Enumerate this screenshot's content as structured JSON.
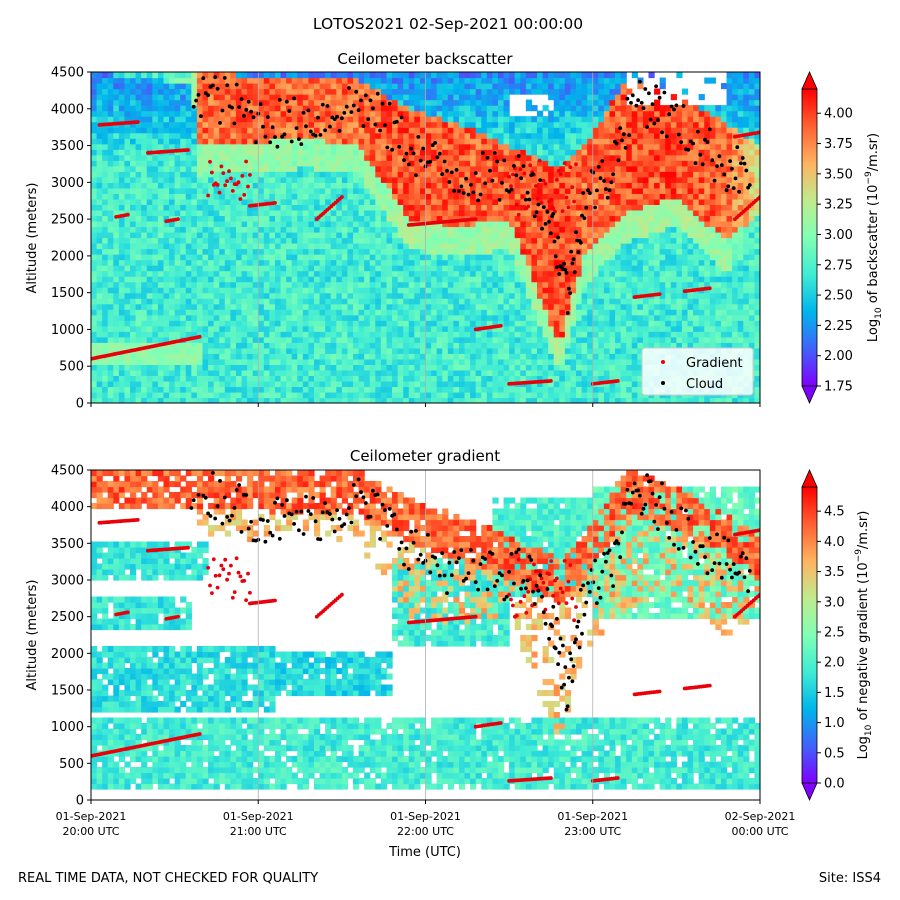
{
  "figure": {
    "suptitle": "LOTOS2021 02-Sep-2021 00:00:00",
    "footer_left": "REAL TIME DATA, NOT CHECKED FOR QUALITY",
    "footer_right": "Site: ISS4"
  },
  "colors": {
    "gradient_marker": "#e8000b",
    "cloud_marker": "#000000",
    "background": "#ffffff"
  },
  "chart_data": [
    {
      "id": "backscatter",
      "type": "heatmap",
      "title": "Ceilometer backscatter",
      "xlabel": "",
      "ylabel": "Altitude (meters)",
      "ylim": [
        0,
        4500
      ],
      "yticks": [
        0,
        500,
        1000,
        1500,
        2000,
        2500,
        3000,
        3500,
        4000,
        4500
      ],
      "xlim_hours_utc": [
        20,
        24
      ],
      "xticks_hours_utc": [
        20,
        21,
        22,
        23,
        24
      ],
      "xtick_labels": [],
      "grid_x": true,
      "colorbar": {
        "label_pre": "Log",
        "label_sub": "10",
        "label_mid": " of backscatter (10",
        "label_sup": "−9",
        "label_post": "/m.sr)",
        "min": 1.75,
        "max": 4.2,
        "ticks": [
          "1.75",
          "2.00",
          "2.25",
          "2.50",
          "2.75",
          "3.00",
          "3.25",
          "3.50",
          "3.75",
          "4.00"
        ],
        "extend": "both"
      },
      "legend": {
        "position": "lower-right",
        "entries": [
          {
            "label": "Gradient",
            "color": "#e8000b"
          },
          {
            "label": "Cloud",
            "color": "#000000"
          }
        ]
      },
      "field": {
        "background_value": 2.7,
        "low_clouds": [
          {
            "t": [
              20.0,
              20.65
            ],
            "h": [
              550,
              850
            ],
            "v": 3.05
          },
          {
            "t": [
              20.0,
              20.7
            ],
            "h": [
              3650,
              3850
            ],
            "v": 2.4
          }
        ],
        "cloud_layer": [
          {
            "t": 20.0,
            "top": 4500,
            "base": 4500,
            "v": 2.6
          },
          {
            "t": 20.6,
            "top": 4500,
            "base": 4350,
            "v": 3.2
          },
          {
            "t": 20.65,
            "top": 4480,
            "base": 3500,
            "v": 4.1
          },
          {
            "t": 21.0,
            "top": 4450,
            "base": 3550,
            "v": 4.15
          },
          {
            "t": 21.3,
            "top": 4400,
            "base": 3600,
            "v": 4.1
          },
          {
            "t": 21.6,
            "top": 4400,
            "base": 3500,
            "v": 4.1
          },
          {
            "t": 21.9,
            "top": 4000,
            "base": 2500,
            "v": 4.2
          },
          {
            "t": 22.2,
            "top": 3800,
            "base": 2400,
            "v": 4.15
          },
          {
            "t": 22.5,
            "top": 3500,
            "base": 2500,
            "v": 4.15
          },
          {
            "t": 22.8,
            "top": 3200,
            "base": 800,
            "v": 4.2
          },
          {
            "t": 22.95,
            "top": 3500,
            "base": 2000,
            "v": 4.1
          },
          {
            "t": 23.2,
            "top": 4400,
            "base": 2600,
            "v": 4.2
          },
          {
            "t": 23.5,
            "top": 4200,
            "base": 2800,
            "v": 4.2
          },
          {
            "t": 23.8,
            "top": 3800,
            "base": 2200,
            "v": 4.1
          },
          {
            "t": 24.0,
            "top": 3500,
            "base": 2600,
            "v": 3.6
          }
        ],
        "gaps": [
          {
            "t": [
              23.2,
              23.8
            ],
            "h": [
              4050,
              4500
            ]
          },
          {
            "t": [
              22.5,
              22.75
            ],
            "h": [
              3900,
              4200
            ]
          }
        ]
      },
      "gradient_points": {
        "segments": [
          {
            "t": [
              20.0,
              20.65
            ],
            "h": [
              600,
              900
            ]
          },
          {
            "t": [
              20.05,
              20.28
            ],
            "h": [
              3780,
              3820
            ]
          },
          {
            "t": [
              20.34,
              20.58
            ],
            "h": [
              3400,
              3440
            ]
          },
          {
            "t": [
              20.15,
              20.22
            ],
            "h": [
              2530,
              2560
            ]
          },
          {
            "t": [
              20.45,
              20.52
            ],
            "h": [
              2470,
              2500
            ]
          },
          {
            "t": [
              20.7,
              20.95
            ],
            "h": [
              2680,
              3300
            ]
          },
          {
            "t": [
              20.95,
              21.1
            ],
            "h": [
              2680,
              2720
            ]
          },
          {
            "t": [
              21.35,
              21.5
            ],
            "h": [
              2500,
              2800
            ]
          },
          {
            "t": [
              22.3,
              22.45
            ],
            "h": [
              1000,
              1050
            ]
          },
          {
            "t": [
              22.5,
              22.75
            ],
            "h": [
              260,
              300
            ]
          },
          {
            "t": [
              23.0,
              23.15
            ],
            "h": [
              260,
              300
            ]
          },
          {
            "t": [
              23.25,
              23.4
            ],
            "h": [
              1440,
              1480
            ]
          },
          {
            "t": [
              23.55,
              23.7
            ],
            "h": [
              1520,
              1560
            ]
          },
          {
            "t": [
              23.85,
              24.0
            ],
            "h": [
              3620,
              3680
            ]
          },
          {
            "t": [
              23.85,
              24.0
            ],
            "h": [
              2500,
              2800
            ]
          },
          {
            "t": [
              22.5,
              22.9
            ],
            "h": [
              2450,
              3300
            ]
          },
          {
            "t": [
              21.9,
              22.3
            ],
            "h": [
              2420,
              2500
            ]
          }
        ]
      },
      "cloud_points": {
        "path": [
          {
            "t": 20.6,
            "h": 4300
          },
          {
            "t": 20.8,
            "h": 4100
          },
          {
            "t": 21.0,
            "h": 3850
          },
          {
            "t": 21.2,
            "h": 3800
          },
          {
            "t": 21.4,
            "h": 3900
          },
          {
            "t": 21.6,
            "h": 4100
          },
          {
            "t": 21.8,
            "h": 3700
          },
          {
            "t": 22.0,
            "h": 3300
          },
          {
            "t": 22.2,
            "h": 3100
          },
          {
            "t": 22.4,
            "h": 3050
          },
          {
            "t": 22.6,
            "h": 3100
          },
          {
            "t": 22.75,
            "h": 2500
          },
          {
            "t": 22.85,
            "h": 1500
          },
          {
            "t": 22.95,
            "h": 2800
          },
          {
            "t": 23.1,
            "h": 3100
          },
          {
            "t": 23.25,
            "h": 4200
          },
          {
            "t": 23.4,
            "h": 4000
          },
          {
            "t": 23.6,
            "h": 3600
          },
          {
            "t": 23.8,
            "h": 3200
          },
          {
            "t": 23.95,
            "h": 3100
          }
        ],
        "spread": 350
      }
    },
    {
      "id": "gradient",
      "type": "heatmap",
      "title": "Ceilometer gradient",
      "xlabel": "Time (UTC)",
      "ylabel": "Altitude (meters)",
      "ylim": [
        0,
        4500
      ],
      "yticks": [
        0,
        500,
        1000,
        1500,
        2000,
        2500,
        3000,
        3500,
        4000,
        4500
      ],
      "xlim_hours_utc": [
        20,
        24
      ],
      "xticks_hours_utc": [
        20,
        21,
        22,
        23,
        24
      ],
      "xtick_labels": [
        {
          "date": "01-Sep-2021",
          "time": "20:00 UTC"
        },
        {
          "date": "01-Sep-2021",
          "time": "21:00 UTC"
        },
        {
          "date": "01-Sep-2021",
          "time": "22:00 UTC"
        },
        {
          "date": "01-Sep-2021",
          "time": "23:00 UTC"
        },
        {
          "date": "02-Sep-2021",
          "time": "00:00 UTC"
        }
      ],
      "grid_x": true,
      "colorbar": {
        "label_pre": "Log",
        "label_sub": "10",
        "label_mid": " of negative gradient (10",
        "label_sup": "−9",
        "label_post": "/m.sr)",
        "min": 0.0,
        "max": 4.9,
        "ticks": [
          "0.0",
          "0.5",
          "1.0",
          "1.5",
          "2.0",
          "2.5",
          "3.0",
          "3.5",
          "4.0",
          "4.5"
        ],
        "extend": "both"
      },
      "field": {
        "bands": [
          {
            "t": [
              20.0,
              24.0
            ],
            "h": [
              150,
              1150
            ],
            "v": 1.9
          },
          {
            "t": [
              20.0,
              21.1
            ],
            "h": [
              1200,
              2100
            ],
            "v": 1.7
          },
          {
            "t": [
              20.0,
              20.6
            ],
            "h": [
              2300,
              2800
            ],
            "v": 1.8
          },
          {
            "t": [
              20.0,
              20.7
            ],
            "h": [
              3000,
              3500
            ],
            "v": 1.8
          },
          {
            "t": [
              21.1,
              21.8
            ],
            "h": [
              1400,
              2000
            ],
            "v": 1.6
          },
          {
            "t": [
              21.8,
              22.5
            ],
            "h": [
              2100,
              3300
            ],
            "v": 1.9
          },
          {
            "t": [
              22.4,
              23.1
            ],
            "h": [
              2800,
              4100
            ],
            "v": 2.0
          },
          {
            "t": [
              23.0,
              24.0
            ],
            "h": [
              2500,
              4300
            ],
            "v": 2.2
          }
        ],
        "cloud_layer_ref": "backscatter"
      }
    }
  ]
}
